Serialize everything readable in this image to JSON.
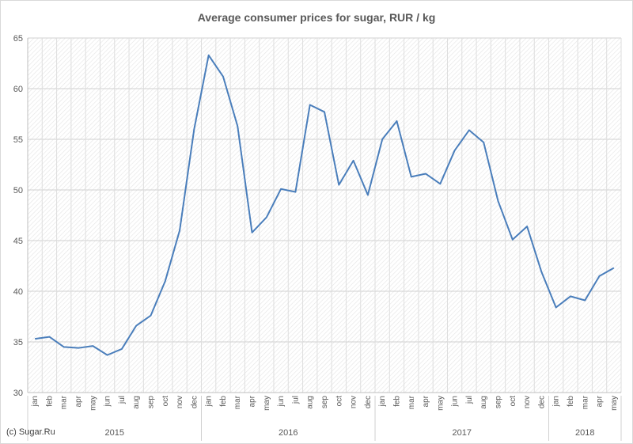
{
  "chart_data": {
    "type": "line",
    "title": "Average consumer prices for sugar, RUR / kg",
    "xlabel": "",
    "ylabel": "",
    "ylim": [
      30,
      65
    ],
    "yticks": [
      30,
      35,
      40,
      45,
      50,
      55,
      60,
      65
    ],
    "grid": true,
    "legend": "none",
    "line_color": "#4a7ebb",
    "categories": [
      "jan",
      "feb",
      "mar",
      "apr",
      "may",
      "jun",
      "jul",
      "aug",
      "sep",
      "oct",
      "nov",
      "dec",
      "jan",
      "feb",
      "mar",
      "apr",
      "may",
      "jun",
      "jul",
      "aug",
      "sep",
      "oct",
      "nov",
      "dec",
      "jan",
      "feb",
      "mar",
      "apr",
      "may",
      "jun",
      "jul",
      "aug",
      "sep",
      "oct",
      "nov",
      "dec",
      "jan",
      "feb",
      "mar",
      "apr",
      "may"
    ],
    "years": [
      {
        "label": "2015",
        "count": 12
      },
      {
        "label": "2016",
        "count": 12
      },
      {
        "label": "2017",
        "count": 12
      },
      {
        "label": "2018",
        "count": 5
      }
    ],
    "series": [
      {
        "values": [
          35.3,
          35.5,
          34.5,
          34.4,
          34.6,
          33.7,
          34.3,
          36.6,
          37.6,
          41.0,
          46.0,
          56.0,
          63.3,
          61.2,
          56.3,
          45.8,
          47.3,
          50.1,
          49.8,
          58.4,
          57.7,
          50.5,
          52.9,
          49.5,
          55.0,
          56.8,
          51.3,
          51.6,
          50.6,
          53.9,
          55.9,
          54.7,
          48.9,
          45.1,
          46.4,
          41.9,
          38.4,
          39.5,
          39.1,
          41.5,
          42.3
        ]
      }
    ]
  },
  "footer": {
    "copyright": "(c) Sugar.Ru"
  }
}
